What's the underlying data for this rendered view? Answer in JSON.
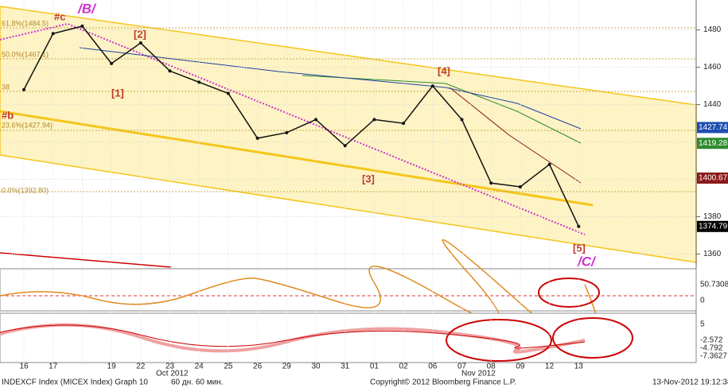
{
  "chart_data": {
    "type": "line",
    "categories": [
      "16",
      "17",
      null,
      "19",
      "22",
      "23",
      "24",
      "25",
      "26",
      "29",
      "30",
      "31",
      "01",
      "02",
      "06",
      "07",
      "08",
      "09",
      "12",
      "13"
    ],
    "values": [
      1448,
      1478,
      1482,
      1462,
      1473,
      1458,
      1452,
      1446,
      1422,
      1425,
      1432,
      1418,
      1432,
      1430,
      1450,
      1432,
      1398,
      1396,
      1408,
      1374.79
    ],
    "color": "#111111",
    "ylim": [
      1353,
      1496
    ],
    "yticks": [
      1360,
      1380,
      1400,
      1420,
      1440,
      1460,
      1480
    ],
    "price_labels": [
      {
        "value": 1427.74,
        "color": "#1f4fb0"
      },
      {
        "value": 1419.28,
        "color": "#2e8b2e"
      },
      {
        "value": 1400.67,
        "color": "#8b1a1a"
      },
      {
        "value": 1374.79,
        "color": "#000000"
      }
    ],
    "month_labels": [
      "Oct 2012",
      "Nov 2012"
    ],
    "annotations": [
      "/B/",
      "#c",
      "[2]",
      "[1]",
      "#b",
      "[3]",
      "[4]",
      "[5]",
      "/C/"
    ],
    "fib_labels": [
      "61.8%(1484.5)",
      "50.0%(1467.1)",
      "38",
      "23.6%(1427.94)",
      "0.0%(1392.80)"
    ],
    "panel2_labels": [
      "50.7308",
      "0"
    ],
    "panel3_labels": [
      "5",
      "-2.572",
      "-4.792",
      "-7.3627"
    ]
  },
  "footer": {
    "security": "INDEXCF Index (MICEX Index) Graph 10",
    "period": "60 дн. 60 мин.",
    "copyright": "Copyright© 2012 Bloomberg Finance L.P.",
    "timestamp": "13-Nov-2012 19:12:38"
  }
}
